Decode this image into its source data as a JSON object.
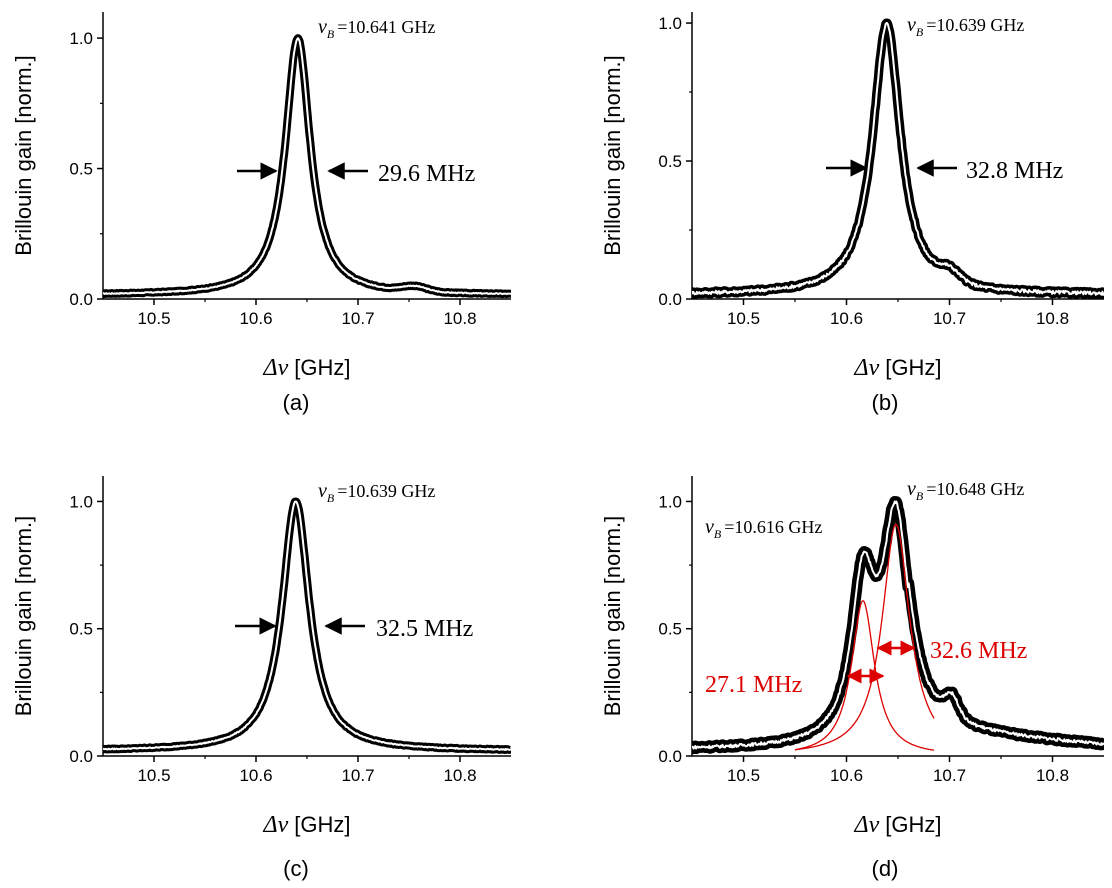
{
  "chart_data": [
    {
      "panel": "(a)",
      "type": "line",
      "xlabel_symbol": "Δν",
      "xlabel_unit": "[GHz]",
      "ylabel": "Brillouin gain [norm.]",
      "xlim": [
        10.45,
        10.85
      ],
      "ylim": [
        0.0,
        1.1
      ],
      "xticks": [
        "10.5",
        "10.6",
        "10.7",
        "10.8"
      ],
      "yticks": [
        "0.0",
        "0.5",
        "1.0"
      ],
      "peaks": [
        {
          "center": 10.641,
          "fwhm_ghz": 0.0296,
          "amp": 1.0
        }
      ],
      "baseline": 0.015,
      "bumps": [
        {
          "center": 10.755,
          "width": 0.012,
          "amp": 0.02
        }
      ],
      "noise": 0.002,
      "nub": {
        "symbol": "ν",
        "sub": "B",
        "text": "=10.641 GHz"
      },
      "fwhm_labels": [
        {
          "text": "29.6 MHz",
          "color": "#000000"
        }
      ]
    },
    {
      "panel": "(b)",
      "type": "line",
      "xlabel_symbol": "Δν",
      "xlabel_unit": "[GHz]",
      "ylabel": "Brillouin gain [norm.]",
      "xlim": [
        10.45,
        10.85
      ],
      "ylim": [
        0.0,
        1.04
      ],
      "xticks": [
        "10.5",
        "10.6",
        "10.7",
        "10.8"
      ],
      "yticks": [
        "0.0",
        "0.5",
        "1.0"
      ],
      "peaks": [
        {
          "center": 10.639,
          "fwhm_ghz": 0.0328,
          "amp": 1.0
        }
      ],
      "baseline": 0.015,
      "bumps": [
        {
          "center": 10.7,
          "width": 0.01,
          "amp": 0.04
        }
      ],
      "noise": 0.006,
      "nub": {
        "symbol": "ν",
        "sub": "B",
        "text": "=10.639 GHz"
      },
      "fwhm_labels": [
        {
          "text": "32.8 MHz",
          "color": "#000000"
        }
      ]
    },
    {
      "panel": "(c)",
      "type": "line",
      "xlabel_symbol": "Δν",
      "xlabel_unit": "[GHz]",
      "ylabel": "Brillouin gain [norm.]",
      "xlim": [
        10.45,
        10.85
      ],
      "ylim": [
        0.0,
        1.1
      ],
      "xticks": [
        "10.5",
        "10.6",
        "10.7",
        "10.8"
      ],
      "yticks": [
        "0.0",
        "0.5",
        "1.0"
      ],
      "peaks": [
        {
          "center": 10.639,
          "fwhm_ghz": 0.0325,
          "amp": 1.0
        }
      ],
      "baseline": 0.02,
      "bumps": [],
      "noise": 0.002,
      "nub": {
        "symbol": "ν",
        "sub": "B",
        "text": "=10.639 GHz"
      },
      "fwhm_labels": [
        {
          "text": "32.5 MHz",
          "color": "#000000"
        }
      ]
    },
    {
      "panel": "(d)",
      "type": "line",
      "xlabel_symbol": "Δν",
      "xlabel_unit": "[GHz]",
      "ylabel": "Brillouin gain [norm.]",
      "xlim": [
        10.45,
        10.85
      ],
      "ylim": [
        0.0,
        1.1
      ],
      "xticks": [
        "10.5",
        "10.6",
        "10.7",
        "10.8"
      ],
      "yticks": [
        "0.0",
        "0.5",
        "1.0"
      ],
      "peaks": [
        {
          "center": 10.616,
          "fwhm_ghz": 0.0271,
          "amp": 0.61
        },
        {
          "center": 10.648,
          "fwhm_ghz": 0.0326,
          "amp": 0.91
        }
      ],
      "baseline": 0.025,
      "bumps": [
        {
          "center": 10.702,
          "width": 0.007,
          "amp": 0.08
        }
      ],
      "tail": 0.06,
      "noise": 0.006,
      "fit_components": [
        {
          "center": 10.616,
          "fwhm_ghz": 0.0271,
          "amp": 0.61,
          "color": "#dd0000",
          "range": [
            10.55,
            10.685
          ]
        },
        {
          "center": 10.648,
          "fwhm_ghz": 0.0326,
          "amp": 0.91,
          "color": "#dd0000",
          "range": [
            10.55,
            10.685
          ]
        }
      ],
      "nub": {
        "symbol": "ν",
        "sub": "B",
        "text": "=10.648 GHz"
      },
      "nub2": {
        "symbol": "ν",
        "sub": "B",
        "text": "=10.616 GHz"
      },
      "fwhm_labels": [
        {
          "text": "32.6 MHz",
          "color": "#dd0000"
        },
        {
          "text": "27.1 MHz",
          "color": "#dd0000"
        }
      ]
    }
  ]
}
